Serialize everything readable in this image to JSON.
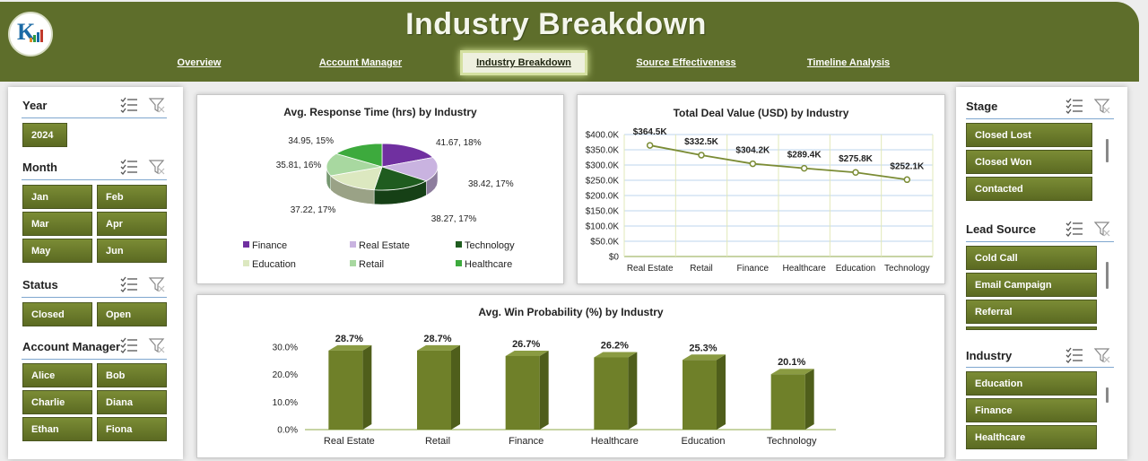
{
  "header": {
    "title": "Industry Breakdown",
    "nav": [
      {
        "label": "Overview",
        "active": false
      },
      {
        "label": "Account Manager",
        "active": false
      },
      {
        "label": "Industry Breakdown",
        "active": true
      },
      {
        "label": "Source Effectiveness",
        "active": false
      },
      {
        "label": "Timeline Analysis",
        "active": false
      }
    ]
  },
  "left_slicers": {
    "year": {
      "title": "Year",
      "items": [
        "2024"
      ]
    },
    "month": {
      "title": "Month",
      "items": [
        "Jan",
        "Feb",
        "Mar",
        "Apr",
        "May",
        "Jun"
      ]
    },
    "status": {
      "title": "Status",
      "items": [
        "Closed",
        "Open"
      ]
    },
    "account_manager": {
      "title": "Account Manager",
      "items": [
        "Alice",
        "Bob",
        "Charlie",
        "Diana",
        "Ethan",
        "Fiona"
      ]
    }
  },
  "right_slicers": {
    "stage": {
      "title": "Stage",
      "items": [
        "Closed Lost",
        "Closed Won",
        "Contacted"
      ]
    },
    "lead_source": {
      "title": "Lead Source",
      "items": [
        "Cold Call",
        "Email Campaign",
        "Referral"
      ]
    },
    "industry": {
      "title": "Industry",
      "items": [
        "Education",
        "Finance",
        "Healthcare"
      ]
    }
  },
  "icons": {
    "multi_select": "multi-select-icon",
    "clear_filter": "clear-filter-icon"
  },
  "colors": {
    "header": "#5e6e2b",
    "button": "#6b7b2c",
    "accent_line": "#7fa7cf"
  },
  "chart_data": [
    {
      "type": "pie",
      "title": "Avg. Response Time (hrs) by Industry",
      "categories": [
        "Finance",
        "Real Estate",
        "Technology",
        "Education",
        "Retail",
        "Healthcare"
      ],
      "values": [
        41.67,
        38.42,
        38.27,
        37.22,
        35.81,
        34.95
      ],
      "labels": [
        "41.67, 18%",
        "38.42, 17%",
        "38.27, 17%",
        "37.22, 17%",
        "35.81, 16%",
        "34.95, 15%"
      ],
      "colors": [
        "#7030a0",
        "#c9b3e0",
        "#1f5c1f",
        "#dce8c0",
        "#a8d8a0",
        "#3daa3d"
      ],
      "legend": "bottom"
    },
    {
      "type": "line",
      "title": "Total Deal Value (USD) by Industry",
      "categories": [
        "Real Estate",
        "Retail",
        "Finance",
        "Healthcare",
        "Education",
        "Technology"
      ],
      "values": [
        364.5,
        332.5,
        304.2,
        289.4,
        275.8,
        252.1
      ],
      "labels": [
        "$364.5K",
        "$332.5K",
        "$304.2K",
        "$289.4K",
        "$275.8K",
        "$252.1K"
      ],
      "yticks": [
        "$0",
        "$50.0K",
        "$100.0K",
        "$150.0K",
        "$200.0K",
        "$250.0K",
        "$300.0K",
        "$350.0K",
        "$400.0K"
      ],
      "ylim": [
        0,
        400
      ],
      "grid": true
    },
    {
      "type": "bar",
      "title": "Avg. Win Probability (%) by Industry",
      "categories": [
        "Real Estate",
        "Retail",
        "Finance",
        "Healthcare",
        "Education",
        "Technology"
      ],
      "values": [
        28.7,
        28.7,
        26.7,
        26.2,
        25.3,
        20.1
      ],
      "labels": [
        "28.7%",
        "28.7%",
        "26.7%",
        "26.2%",
        "25.3%",
        "20.1%"
      ],
      "yticks": [
        "0.0%",
        "10.0%",
        "20.0%",
        "30.0%"
      ],
      "ylim": [
        0,
        30
      ]
    }
  ]
}
